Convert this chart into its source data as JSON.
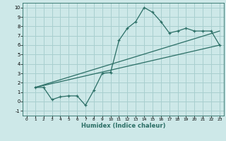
{
  "xlabel": "Humidex (Indice chaleur)",
  "background_color": "#cde8e8",
  "grid_color": "#a8cfcf",
  "line_color": "#2a6e65",
  "xlim": [
    -0.5,
    23.5
  ],
  "ylim": [
    -1.5,
    10.5
  ],
  "xticks": [
    0,
    1,
    2,
    3,
    4,
    5,
    6,
    7,
    8,
    9,
    10,
    11,
    12,
    13,
    14,
    15,
    16,
    17,
    18,
    19,
    20,
    21,
    22,
    23
  ],
  "yticks": [
    -1,
    0,
    1,
    2,
    3,
    4,
    5,
    6,
    7,
    8,
    9,
    10
  ],
  "line1_x": [
    1,
    2,
    3,
    4,
    5,
    6,
    7,
    8,
    9,
    10,
    11,
    12,
    13,
    14,
    15,
    16,
    17,
    18,
    19,
    20,
    21,
    22,
    23
  ],
  "line1_y": [
    1.5,
    1.5,
    0.2,
    0.5,
    0.6,
    0.6,
    -0.4,
    1.2,
    3.0,
    3.1,
    6.5,
    7.8,
    8.5,
    10.0,
    9.5,
    8.5,
    7.3,
    7.5,
    7.8,
    7.5,
    7.5,
    7.5,
    6.0
  ],
  "line2_x": [
    1,
    23
  ],
  "line2_y": [
    1.5,
    6.0
  ],
  "line3_x": [
    1,
    23
  ],
  "line3_y": [
    1.5,
    7.5
  ]
}
